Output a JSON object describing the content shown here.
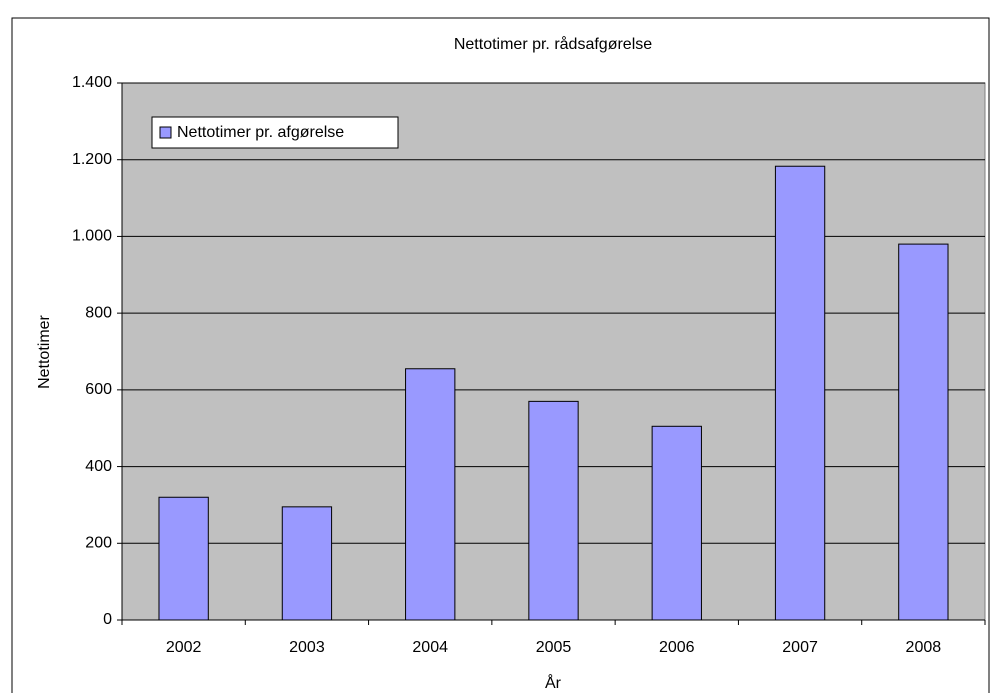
{
  "chart_data": {
    "type": "bar",
    "title": "Nettotimer pr. rådsafgørelse",
    "x_label": "År",
    "y_label": "Nettotimer",
    "categories": [
      "2002",
      "2003",
      "2004",
      "2005",
      "2006",
      "2007",
      "2008"
    ],
    "series": [
      {
        "name": "Nettotimer pr. afgørelse",
        "color": "#9999ff",
        "values": [
          320,
          295,
          655,
          570,
          505,
          1183,
          980
        ]
      }
    ],
    "ylim": [
      0,
      1400
    ],
    "yticks": [
      0,
      200,
      400,
      600,
      800,
      {
        "value": 1000,
        "label": "1.000"
      },
      {
        "value": 1200,
        "label": "1.200"
      },
      {
        "value": 1400,
        "label": "1.400"
      }
    ],
    "grid": true,
    "legend": "upper left",
    "plot_background": "#c0c0c0"
  }
}
